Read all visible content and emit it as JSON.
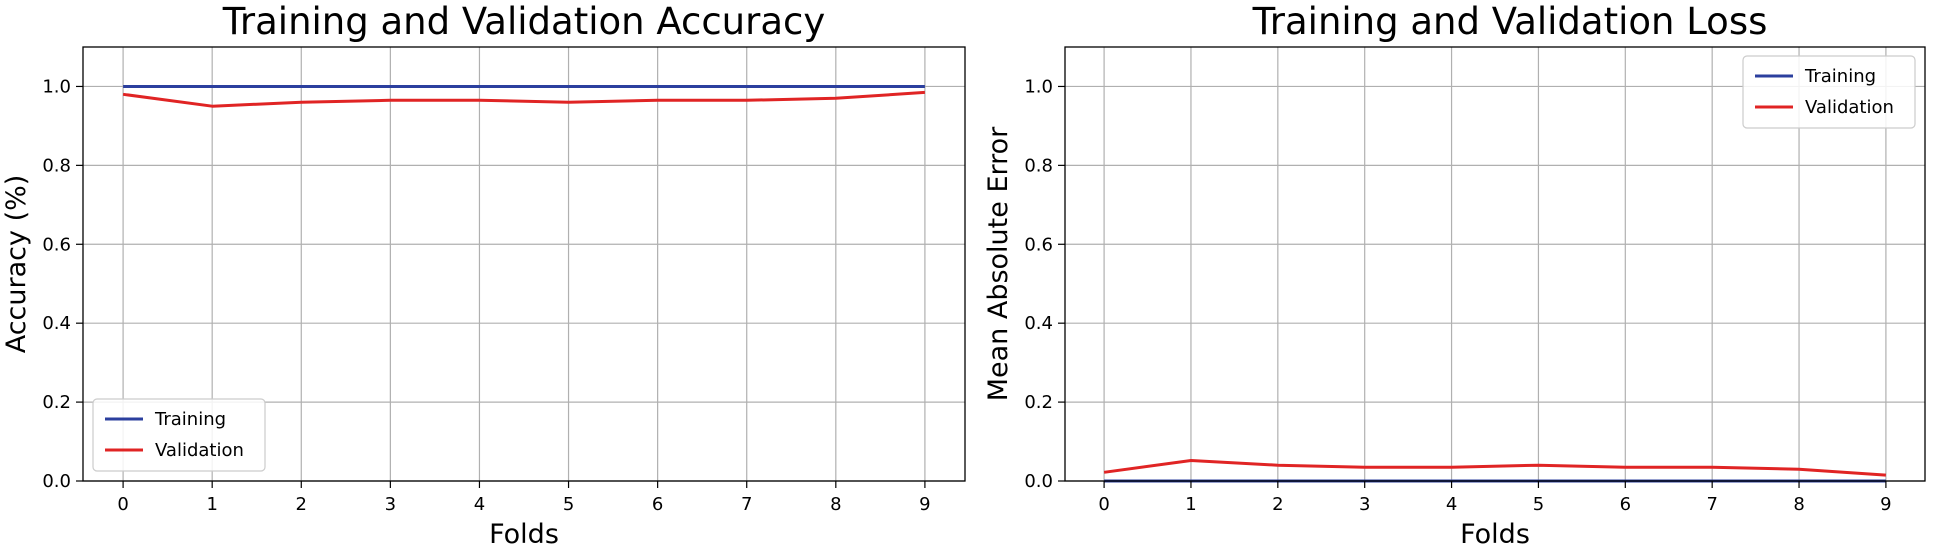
{
  "chart_data": [
    {
      "type": "line",
      "title": "Training and Validation Accuracy",
      "xlabel": "Folds",
      "ylabel": "Accuracy (%)",
      "x": [
        0,
        1,
        2,
        3,
        4,
        5,
        6,
        7,
        8,
        9
      ],
      "xlim": [
        -0.45,
        9.45
      ],
      "ylim": [
        0.0,
        1.1
      ],
      "yticks": [
        0.0,
        0.2,
        0.4,
        0.6,
        0.8,
        1.0
      ],
      "ytick_labels": [
        "0.0",
        "0.2",
        "0.4",
        "0.6",
        "0.8",
        "1.0"
      ],
      "xtick_labels": [
        "0",
        "1",
        "2",
        "3",
        "4",
        "5",
        "6",
        "7",
        "8",
        "9"
      ],
      "grid": true,
      "legend_position": "lower-left",
      "series": [
        {
          "name": "Training",
          "color": "#2b3f9e",
          "values": [
            1.0,
            1.0,
            1.0,
            1.0,
            1.0,
            1.0,
            1.0,
            1.0,
            1.0,
            1.0
          ]
        },
        {
          "name": "Validation",
          "color": "#e02424",
          "values": [
            0.98,
            0.95,
            0.96,
            0.965,
            0.965,
            0.96,
            0.965,
            0.965,
            0.97,
            0.985
          ]
        }
      ]
    },
    {
      "type": "line",
      "title": "Training and Validation Loss",
      "xlabel": "Folds",
      "ylabel": "Mean Absolute Error",
      "x": [
        0,
        1,
        2,
        3,
        4,
        5,
        6,
        7,
        8,
        9
      ],
      "xlim": [
        -0.45,
        9.45
      ],
      "ylim": [
        0.0,
        1.1
      ],
      "yticks": [
        0.0,
        0.2,
        0.4,
        0.6,
        0.8,
        1.0
      ],
      "ytick_labels": [
        "0.0",
        "0.2",
        "0.4",
        "0.6",
        "0.8",
        "1.0"
      ],
      "xtick_labels": [
        "0",
        "1",
        "2",
        "3",
        "4",
        "5",
        "6",
        "7",
        "8",
        "9"
      ],
      "grid": true,
      "legend_position": "top-right",
      "series": [
        {
          "name": "Training",
          "color": "#2b3f9e",
          "values": [
            0.0,
            0.0,
            0.0,
            0.0,
            0.0,
            0.0,
            0.0,
            0.0,
            0.0,
            0.0
          ]
        },
        {
          "name": "Validation",
          "color": "#e02424",
          "values": [
            0.022,
            0.052,
            0.04,
            0.035,
            0.035,
            0.04,
            0.035,
            0.035,
            0.03,
            0.015
          ]
        }
      ]
    }
  ]
}
